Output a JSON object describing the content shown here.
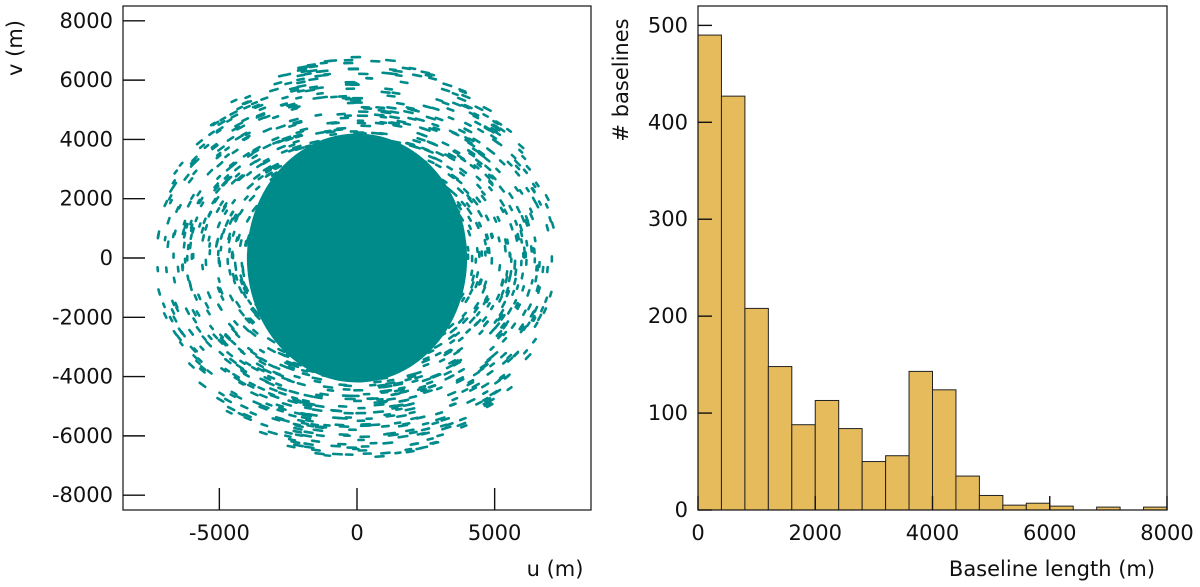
{
  "chart_data": [
    {
      "type": "scatter",
      "title": "",
      "xlabel": "u (m)",
      "ylabel": "v (m)",
      "xlim": [
        -8500,
        8500
      ],
      "ylim": [
        -8500,
        8500
      ],
      "xticks": [
        "-5000",
        "0",
        "5000"
      ],
      "xtick_values": [
        -5000,
        0,
        5000
      ],
      "yticks": [
        "8000",
        "6000",
        "4000",
        "2000",
        "0",
        "-2000",
        "-4000",
        "-6000",
        "-8000"
      ],
      "ytick_values": [
        8000,
        6000,
        4000,
        2000,
        0,
        -2000,
        -4000,
        -6000,
        -8000
      ],
      "grid": false,
      "color": "#008b8b",
      "distribution": {
        "description": "uv-coverage: dense filled core out to ~4000 m radius, sparse dashes out to ~7300 m radius",
        "core_radius": 4000,
        "outer_radius": 7300
      }
    },
    {
      "type": "bar",
      "title": "",
      "xlabel": "Baseline length (m)",
      "ylabel": "# baselines",
      "xlim": [
        0,
        8000
      ],
      "ylim": [
        0,
        520
      ],
      "xticks": [
        "0",
        "2000",
        "4000",
        "6000",
        "8000"
      ],
      "xtick_values": [
        0,
        2000,
        4000,
        6000,
        8000
      ],
      "yticks": [
        "0",
        "100",
        "200",
        "300",
        "400",
        "500"
      ],
      "ytick_values": [
        0,
        100,
        200,
        300,
        400,
        500
      ],
      "grid": false,
      "color": "#e6bb5c",
      "edge_color": "#222222",
      "bin_width": 400,
      "bin_starts": [
        0,
        400,
        800,
        1200,
        1600,
        2000,
        2400,
        2800,
        3200,
        3600,
        4000,
        4400,
        4800,
        5200,
        5600,
        6000,
        6400,
        6800,
        7200,
        7600
      ],
      "values": [
        490,
        427,
        208,
        148,
        88,
        113,
        84,
        50,
        56,
        143,
        124,
        35,
        15,
        5,
        7,
        4,
        0,
        3,
        0,
        3
      ]
    }
  ]
}
